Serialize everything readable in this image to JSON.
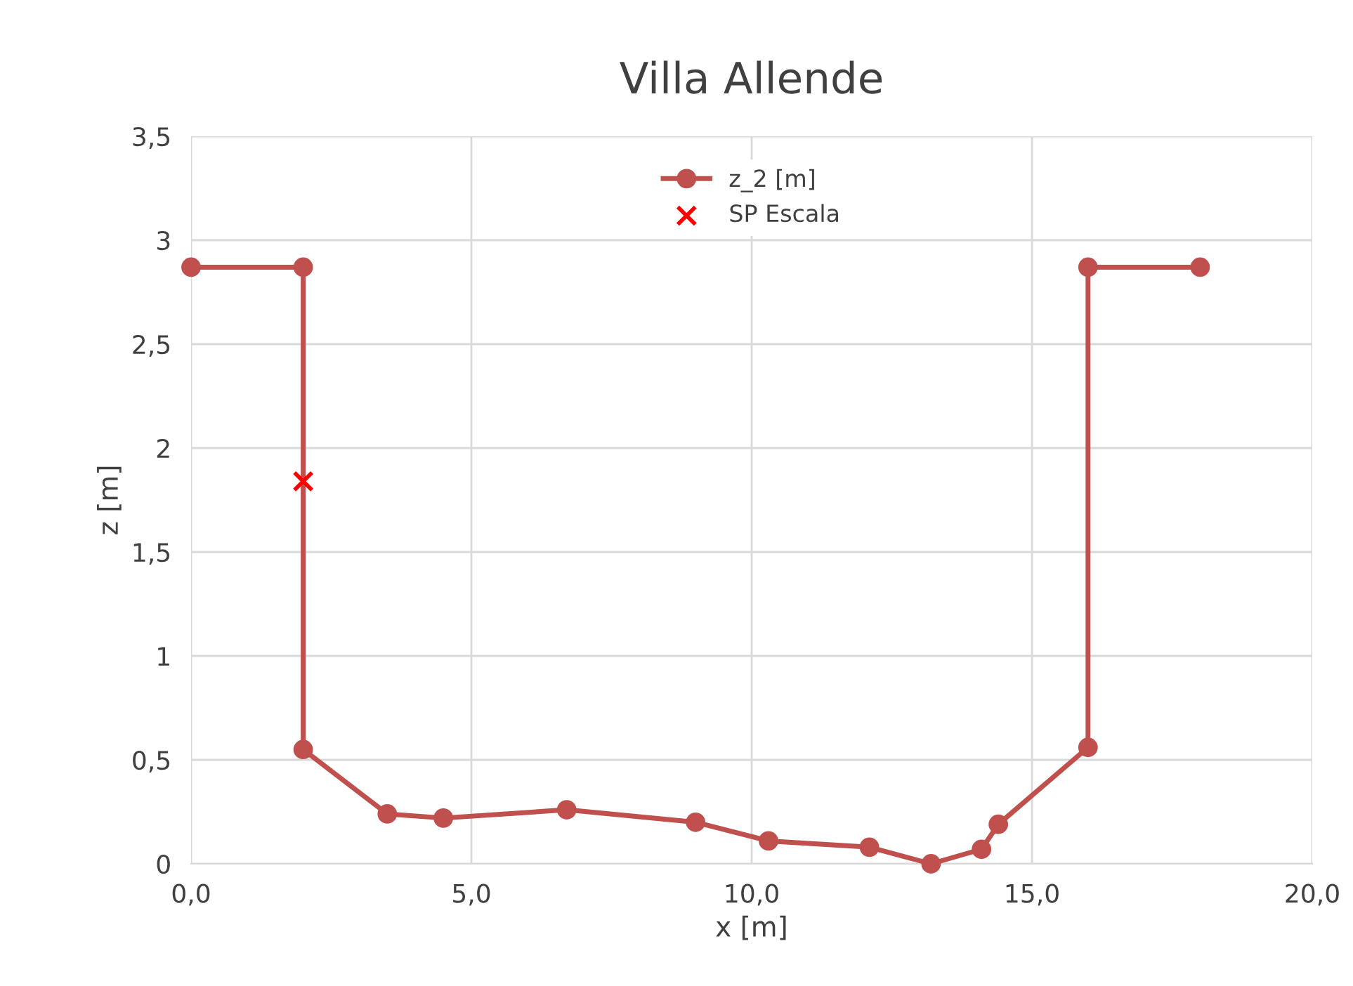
{
  "chart_data": {
    "type": "line",
    "title": "Villa Allende",
    "xlabel": "x [m]",
    "ylabel": "z [m]",
    "series": [
      {
        "name": "z_2 [m]",
        "color": "#c0504d",
        "marker": "circle",
        "x": [
          0,
          2.0,
          2.0,
          3.5,
          4.5,
          6.7,
          9.0,
          10.3,
          12.1,
          13.2,
          14.1,
          14.4,
          16.0,
          16.0,
          18.0
        ],
        "values": [
          2.87,
          2.87,
          0.55,
          0.24,
          0.22,
          0.26,
          0.2,
          0.11,
          0.08,
          0.0,
          0.07,
          0.19,
          0.56,
          2.87,
          2.87
        ]
      },
      {
        "name": "SP Escala",
        "type": "scatter",
        "color": "#ff0000",
        "marker": "cross",
        "x": [
          2.0
        ],
        "values": [
          1.84
        ]
      }
    ],
    "xlim": [
      0,
      20
    ],
    "ylim": [
      0,
      3.5
    ],
    "xticks": [
      {
        "value": 0,
        "label": "0,0"
      },
      {
        "value": 5,
        "label": "5,0"
      },
      {
        "value": 10,
        "label": "10,0"
      },
      {
        "value": 15,
        "label": "15,0"
      },
      {
        "value": 20,
        "label": "20,0"
      }
    ],
    "yticks": [
      0,
      {
        "value": 0.5,
        "label": "0,5"
      },
      1,
      {
        "value": 1.5,
        "label": "1,5"
      },
      2,
      {
        "value": 2.5,
        "label": "2,5"
      },
      3,
      {
        "value": 3.5,
        "label": "3,5"
      }
    ],
    "grid": true,
    "legend": "top"
  }
}
